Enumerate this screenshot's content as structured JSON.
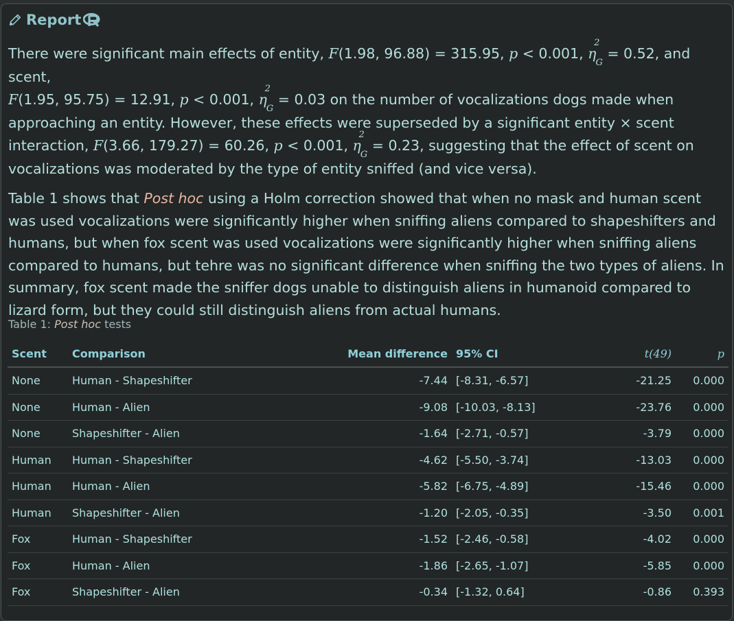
{
  "header": {
    "title": "Report"
  },
  "para1": {
    "s1": "There were significant main effects of entity, ",
    "F1": "F",
    "s2": "(1.98, 96.88) = 315.95, ",
    "p1": "p",
    "s3": " < 0.001, ",
    "s4": " = 0.52, and scent,",
    "F2": "F",
    "s5": "(1.95, 95.75) = 12.91, ",
    "p2": "p",
    "s6": " < 0.001, ",
    "s7": " = 0.03 on the number of vocalizations dogs made when approaching an entity. However, these effects were superseded by a significant entity × scent interaction, ",
    "F3": "F",
    "s8": "(3.66, 179.27) = 60.26, ",
    "p3": "p",
    "s9": " < 0.001, ",
    "s10": " = 0.23, suggesting that the effect of scent on vocalizations was moderated by the type of entity sniffed (and vice versa).",
    "eta": "η",
    "eta_sup": "2",
    "eta_sub": "G"
  },
  "para2": {
    "s1": "Table 1 shows that ",
    "ph": "Post hoc",
    "s2": " using a Holm correction showed that when no mask and human scent was used vocalizations were significantly higher when sniffing aliens compared to shapeshifters and humans, but when fox scent was used vocalizations were significantly higher when sniffing aliens compared to humans, but tehre was no significant difference when sniffing the two types of aliens. In summary, fox scent made the sniffer dogs unable to distinguish aliens in humanoid compared to lizard form, but they could still distinguish aliens from actual humans."
  },
  "caption": {
    "prefix": "Table 1: ",
    "italic": "Post hoc",
    "suffix": " tests"
  },
  "table": {
    "headers": {
      "scent": "Scent",
      "comparison": "Comparison",
      "mean_diff": "Mean difference",
      "ci": "95% CI",
      "t": "t(49)",
      "p": "p"
    },
    "rows": [
      {
        "scent": "None",
        "comparison": "Human - Shapeshifter",
        "mean_diff": "-7.44",
        "ci": "[-8.31, -6.57]",
        "t": "-21.25",
        "p": "0.000"
      },
      {
        "scent": "None",
        "comparison": "Human - Alien",
        "mean_diff": "-9.08",
        "ci": "[-10.03, -8.13]",
        "t": "-23.76",
        "p": "0.000"
      },
      {
        "scent": "None",
        "comparison": "Shapeshifter - Alien",
        "mean_diff": "-1.64",
        "ci": "[-2.71, -0.57]",
        "t": "-3.79",
        "p": "0.000"
      },
      {
        "scent": "Human",
        "comparison": "Human - Shapeshifter",
        "mean_diff": "-4.62",
        "ci": "[-5.50, -3.74]",
        "t": "-13.03",
        "p": "0.000"
      },
      {
        "scent": "Human",
        "comparison": "Human - Alien",
        "mean_diff": "-5.82",
        "ci": "[-6.75, -4.89]",
        "t": "-15.46",
        "p": "0.000"
      },
      {
        "scent": "Human",
        "comparison": "Shapeshifter - Alien",
        "mean_diff": "-1.20",
        "ci": "[-2.05, -0.35]",
        "t": "-3.50",
        "p": "0.001"
      },
      {
        "scent": "Fox",
        "comparison": "Human - Shapeshifter",
        "mean_diff": "-1.52",
        "ci": "[-2.46, -0.58]",
        "t": "-4.02",
        "p": "0.000"
      },
      {
        "scent": "Fox",
        "comparison": "Human - Alien",
        "mean_diff": "-1.86",
        "ci": "[-2.65, -1.07]",
        "t": "-5.85",
        "p": "0.000"
      },
      {
        "scent": "Fox",
        "comparison": "Shapeshifter - Alien",
        "mean_diff": "-0.34",
        "ci": "[-1.32, 0.64]",
        "t": "-0.86",
        "p": "0.393"
      }
    ]
  },
  "colors": {
    "background": "#232626",
    "text": "#b5dede",
    "accent": "#8fc3c9",
    "italic_highlight": "#e8b7a3"
  },
  "icons": {
    "edit": "pencil-icon",
    "brand": "r-logo-icon"
  }
}
